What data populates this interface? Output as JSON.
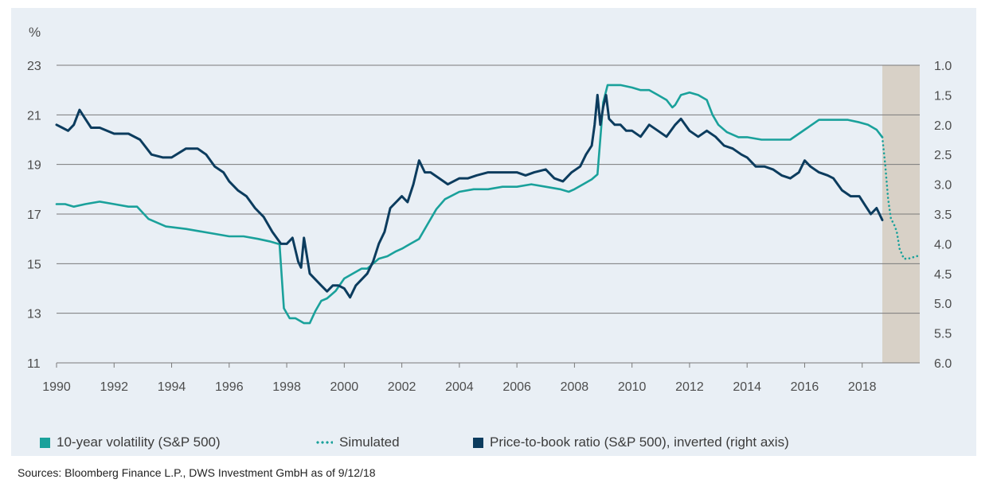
{
  "chart_data": {
    "type": "line",
    "y_unit_label": "%",
    "xlim": [
      1990,
      2020
    ],
    "x_ticks": [
      "1990",
      "1992",
      "1994",
      "1996",
      "1998",
      "2000",
      "2002",
      "2004",
      "2006",
      "2008",
      "2010",
      "2012",
      "2014",
      "2016",
      "2018"
    ],
    "ylim_left": [
      11,
      23
    ],
    "y_ticks_left": [
      "11",
      "13",
      "15",
      "17",
      "19",
      "21",
      "23"
    ],
    "ylim_right_inverted": [
      6.0,
      1.0
    ],
    "y_ticks_right": [
      "1.0",
      "1.5",
      "2.0",
      "2.5",
      "3.0",
      "3.5",
      "4.0",
      "4.5",
      "5.0",
      "5.5",
      "6.0"
    ],
    "grid": "horizontal",
    "legend_position": "bottom",
    "shaded_region": {
      "x_start": 2018.7,
      "x_end": 2020.0
    },
    "series": [
      {
        "name": "10-year volatility (S&P 500)",
        "axis": "left",
        "color": "#1aa19b",
        "style": "solid",
        "x": [
          1990.0,
          1990.3,
          1990.6,
          1991.0,
          1991.5,
          1992.0,
          1992.5,
          1992.8,
          1993.2,
          1993.8,
          1994.5,
          1995.0,
          1995.5,
          1996.0,
          1996.5,
          1997.0,
          1997.4,
          1997.7,
          1997.75,
          1997.9,
          1998.1,
          1998.3,
          1998.6,
          1998.8,
          1999.0,
          1999.2,
          1999.4,
          1999.7,
          2000.0,
          2000.3,
          2000.6,
          2000.8,
          2001.0,
          2001.2,
          2001.5,
          2001.8,
          2002.0,
          2002.3,
          2002.6,
          2002.9,
          2003.2,
          2003.5,
          2004.0,
          2004.5,
          2005.0,
          2005.5,
          2006.0,
          2006.5,
          2007.0,
          2007.5,
          2007.8,
          2008.0,
          2008.3,
          2008.6,
          2008.8,
          2009.0,
          2009.15,
          2009.3,
          2009.6,
          2010.0,
          2010.3,
          2010.6,
          2010.9,
          2011.2,
          2011.4,
          2011.5,
          2011.7,
          2012.0,
          2012.3,
          2012.6,
          2012.8,
          2013.0,
          2013.3,
          2013.7,
          2014.0,
          2014.5,
          2015.0,
          2015.5,
          2016.0,
          2016.5,
          2017.0,
          2017.5,
          2017.9,
          2018.2,
          2018.5,
          2018.7
        ],
        "y": [
          17.4,
          17.4,
          17.3,
          17.4,
          17.5,
          17.4,
          17.3,
          17.3,
          16.8,
          16.5,
          16.4,
          16.3,
          16.2,
          16.1,
          16.1,
          16.0,
          15.9,
          15.8,
          15.8,
          13.2,
          12.8,
          12.8,
          12.6,
          12.6,
          13.1,
          13.5,
          13.6,
          13.9,
          14.4,
          14.6,
          14.8,
          14.8,
          15.0,
          15.2,
          15.3,
          15.5,
          15.6,
          15.8,
          16.0,
          16.6,
          17.2,
          17.6,
          17.9,
          18.0,
          18.0,
          18.1,
          18.1,
          18.2,
          18.1,
          18.0,
          17.9,
          18.0,
          18.2,
          18.4,
          18.6,
          21.5,
          22.2,
          22.2,
          22.2,
          22.1,
          22.0,
          22.0,
          21.8,
          21.6,
          21.3,
          21.4,
          21.8,
          21.9,
          21.8,
          21.6,
          21.0,
          20.6,
          20.3,
          20.1,
          20.1,
          20.0,
          20.0,
          20.0,
          20.4,
          20.8,
          20.8,
          20.8,
          20.7,
          20.6,
          20.4,
          20.1
        ]
      },
      {
        "name": "Simulated",
        "axis": "left",
        "color": "#1aa19b",
        "style": "dotted",
        "x": [
          2018.7,
          2018.8,
          2018.9,
          2019.0,
          2019.1,
          2019.2,
          2019.3,
          2019.45,
          2019.6,
          2019.75,
          2019.9,
          2020.0
        ],
        "y": [
          20.1,
          19.0,
          17.6,
          16.8,
          16.6,
          16.3,
          15.6,
          15.2,
          15.2,
          15.25,
          15.3,
          15.35
        ]
      },
      {
        "name": "Price-to-book ratio (S&P 500), inverted (right axis)",
        "axis": "right",
        "color": "#0c3c5e",
        "style": "solid",
        "x": [
          1990.0,
          1990.2,
          1990.4,
          1990.6,
          1990.8,
          1991.0,
          1991.2,
          1991.5,
          1992.0,
          1992.5,
          1992.9,
          1993.3,
          1993.7,
          1994.0,
          1994.5,
          1994.9,
          1995.2,
          1995.5,
          1995.8,
          1996.0,
          1996.3,
          1996.6,
          1996.9,
          1997.2,
          1997.5,
          1997.8,
          1998.0,
          1998.2,
          1998.4,
          1998.5,
          1998.6,
          1998.8,
          1999.0,
          1999.2,
          1999.4,
          1999.6,
          1999.8,
          2000.0,
          2000.2,
          2000.4,
          2000.6,
          2000.8,
          2001.0,
          2001.2,
          2001.4,
          2001.6,
          2001.8,
          2002.0,
          2002.2,
          2002.4,
          2002.6,
          2002.8,
          2003.0,
          2003.3,
          2003.6,
          2004.0,
          2004.3,
          2004.6,
          2005.0,
          2005.3,
          2005.6,
          2006.0,
          2006.3,
          2006.6,
          2007.0,
          2007.3,
          2007.6,
          2007.9,
          2008.2,
          2008.4,
          2008.6,
          2008.7,
          2008.8,
          2008.9,
          2009.0,
          2009.1,
          2009.2,
          2009.4,
          2009.6,
          2009.8,
          2010.0,
          2010.3,
          2010.6,
          2010.9,
          2011.2,
          2011.5,
          2011.7,
          2012.0,
          2012.3,
          2012.6,
          2012.9,
          2013.2,
          2013.5,
          2013.8,
          2014.0,
          2014.3,
          2014.6,
          2014.9,
          2015.2,
          2015.5,
          2015.8,
          2016.0,
          2016.2,
          2016.5,
          2016.8,
          2017.0,
          2017.3,
          2017.6,
          2017.9,
          2018.1,
          2018.3,
          2018.5,
          2018.7
        ],
        "y": [
          2.0,
          2.05,
          2.1,
          2.0,
          1.75,
          1.9,
          2.05,
          2.05,
          2.15,
          2.15,
          2.25,
          2.5,
          2.55,
          2.55,
          2.4,
          2.4,
          2.5,
          2.7,
          2.8,
          2.95,
          3.1,
          3.2,
          3.4,
          3.55,
          3.8,
          4.0,
          4.0,
          3.9,
          4.3,
          4.4,
          3.9,
          4.5,
          4.6,
          4.7,
          4.8,
          4.7,
          4.7,
          4.75,
          4.9,
          4.7,
          4.6,
          4.5,
          4.3,
          4.0,
          3.8,
          3.4,
          3.3,
          3.2,
          3.3,
          3.0,
          2.6,
          2.8,
          2.8,
          2.9,
          3.0,
          2.9,
          2.9,
          2.85,
          2.8,
          2.8,
          2.8,
          2.8,
          2.85,
          2.8,
          2.75,
          2.9,
          2.95,
          2.8,
          2.7,
          2.5,
          2.35,
          2.0,
          1.5,
          2.0,
          1.7,
          1.5,
          1.9,
          2.0,
          2.0,
          2.1,
          2.1,
          2.2,
          2.0,
          2.1,
          2.2,
          2.0,
          1.9,
          2.1,
          2.2,
          2.1,
          2.2,
          2.35,
          2.4,
          2.5,
          2.55,
          2.7,
          2.7,
          2.75,
          2.85,
          2.9,
          2.8,
          2.6,
          2.7,
          2.8,
          2.85,
          2.9,
          3.1,
          3.2,
          3.2,
          3.35,
          3.5,
          3.4,
          3.6
        ]
      }
    ],
    "legend": [
      {
        "label": "10-year volatility (S&P 500)",
        "marker": "square"
      },
      {
        "label": "Simulated",
        "marker": "dotted-line"
      },
      {
        "label": "Price-to-book ratio (S&P 500), inverted (right axis)",
        "marker": "square"
      }
    ]
  },
  "source_note": "Sources: Bloomberg Finance L.P., DWS Investment GmbH as of 9/12/18",
  "colors": {
    "panel_bg": "#e9eff5",
    "grid": "#7a7a7a",
    "shade": "#d8d1c7",
    "teal": "#1aa19b",
    "navy": "#0c3c5e"
  }
}
